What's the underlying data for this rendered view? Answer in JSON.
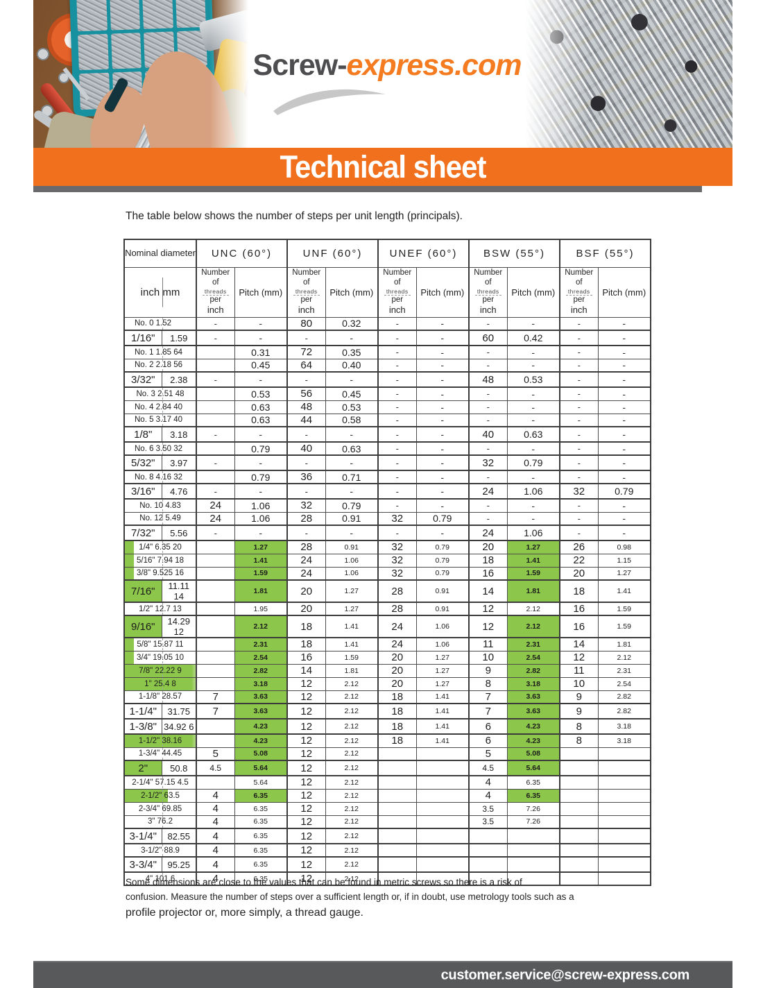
{
  "colors": {
    "accent_orange": "#f1701e",
    "highlight_green": "#8cc64a",
    "bottom_bar_gray": "#58595b",
    "logo_gray": "#4d4d4f",
    "logo_orange": "#f47b20"
  },
  "header": {
    "logo_prefix": "Screw-",
    "logo_suffix": "express.com",
    "banner_title": "Technical sheet"
  },
  "intro": "The table below shows the number of steps per unit length (principals).",
  "table": {
    "nominal_header": "Nominal diameter",
    "unit_header": "inch mm",
    "groups": [
      {
        "label": "UNC (60°)"
      },
      {
        "label": "UNF (60°)"
      },
      {
        "label": "UNEF (60°)"
      },
      {
        "label": "BSW (55°)"
      },
      {
        "label": "BSF (55°)"
      }
    ],
    "subheaders": {
      "threads_lines": [
        "Number of",
        "threads",
        "per",
        "inch"
      ],
      "pitch": "Pitch (mm)"
    },
    "rows": [
      {
        "n": "No. 0 1.52",
        "t": "m",
        "a": "l",
        "c": [
          "-",
          "-",
          "80",
          "0.32",
          "-",
          "-",
          "-",
          "-",
          "-",
          "-"
        ]
      },
      {
        "n": "1/16\"",
        "mm": "1.59",
        "t": "s",
        "c": [
          "-",
          "-",
          "-",
          "-",
          "-",
          "-",
          "60",
          "0.42",
          "-",
          "-"
        ]
      },
      {
        "n": "No. 1 1.85 64",
        "t": "m",
        "a": "l",
        "c": [
          "",
          "0.31",
          "72",
          "0.35",
          "-",
          "-",
          "-",
          "-",
          "-",
          "-"
        ]
      },
      {
        "n": "No. 2 2.18 56",
        "t": "m",
        "a": "l",
        "c": [
          "",
          "0.45",
          "64",
          "0.40",
          "-",
          "-",
          "-",
          "-",
          "-",
          "-"
        ]
      },
      {
        "n": "3/32\"",
        "mm": "2.38",
        "t": "s",
        "c": [
          "-",
          "-",
          "-",
          "-",
          "-",
          "-",
          "48",
          "0.53",
          "-",
          "-"
        ]
      },
      {
        "n": "No. 3 2.51 48",
        "t": "m",
        "c": [
          "",
          "0.53",
          "56",
          "0.45",
          "-",
          "-",
          "-",
          "-",
          "-",
          "-"
        ]
      },
      {
        "n": "No. 4 2.84 40",
        "t": "m",
        "a": "l",
        "c": [
          "",
          "0.63",
          "48",
          "0.53",
          "-",
          "-",
          "-",
          "-",
          "-",
          "-"
        ]
      },
      {
        "n": "No. 5 3.17 40",
        "t": "m",
        "a": "l",
        "c": [
          "",
          "0.63",
          "44",
          "0.58",
          "-",
          "-",
          "-",
          "-",
          "-",
          "-"
        ]
      },
      {
        "n": "1/8\"",
        "mm": "3.18",
        "t": "s",
        "c": [
          "-",
          "-",
          "-",
          "-",
          "-",
          "-",
          "40",
          "0.63",
          "-",
          "-"
        ]
      },
      {
        "n": "No. 6 3.50 32",
        "t": "m",
        "a": "l",
        "c": [
          "",
          "0.79",
          "40",
          "0.63",
          "-",
          "-",
          "-",
          "-",
          "-",
          "-"
        ]
      },
      {
        "n": "5/32\"",
        "mm": "3.97",
        "t": "s",
        "c": [
          "-",
          "-",
          "-",
          "-",
          "-",
          "-",
          "32",
          "0.79",
          "-",
          "-"
        ]
      },
      {
        "n": "No. 8 4.16 32",
        "t": "m",
        "a": "l",
        "c": [
          "",
          "0.79",
          "36",
          "0.71",
          "-",
          "-",
          "-",
          "-",
          "-",
          "-"
        ]
      },
      {
        "n": "3/16\"",
        "mm": "4.76",
        "t": "s",
        "c": [
          "-",
          "-",
          "-",
          "-",
          "-",
          "-",
          "24",
          "1.06",
          "32",
          "0.79"
        ]
      },
      {
        "n": "No. 10 4.83",
        "t": "m",
        "c": [
          "24",
          "1.06",
          "32",
          "0.79",
          "-",
          "-",
          "-",
          "-",
          "-",
          "-"
        ]
      },
      {
        "n": "No. 12 5.49",
        "t": "m",
        "c": [
          "24",
          "1.06",
          "28",
          "0.91",
          "32",
          "0.79",
          "-",
          "-",
          "-",
          "-"
        ]
      },
      {
        "n": "7/32\"",
        "mm": "5.56",
        "t": "s",
        "c": [
          "-",
          "-",
          "-",
          "-",
          "-",
          "-",
          "24",
          "1.06",
          "-",
          "-"
        ]
      },
      {
        "n": "1/4\" 6.35 20",
        "t": "m",
        "ng": 1,
        "g": [
          1,
          7
        ],
        "c": [
          "",
          "1.27",
          "28",
          "0.91",
          "32",
          "0.79",
          "20",
          "1.27",
          "26",
          "0.98"
        ]
      },
      {
        "n": "5/16\" 7.94 18",
        "t": "m",
        "ng": 1,
        "g": [
          1,
          7
        ],
        "c": [
          "",
          "1.41",
          "24",
          "1.06",
          "32",
          "0.79",
          "18",
          "1.41",
          "22",
          "1.15"
        ]
      },
      {
        "n": "3/8\" 9.525 16",
        "t": "m",
        "ng": 1,
        "g": [
          1,
          7
        ],
        "c": [
          "",
          "1.59",
          "24",
          "1.06",
          "32",
          "0.79",
          "16",
          "1.59",
          "20",
          "1.27"
        ]
      },
      {
        "n": "7/16\"",
        "mm": "11.11 14",
        "t": "s",
        "ng": 2,
        "g": [
          1,
          7
        ],
        "c": [
          "",
          "1.81",
          "20",
          "1.27",
          "28",
          "0.91",
          "14",
          "1.81",
          "18",
          "1.41"
        ]
      },
      {
        "n": "1/2\" 12.7 13",
        "t": "m",
        "c": [
          "",
          "1.95",
          "20",
          "1.27",
          "28",
          "0.91",
          "12",
          "2.12",
          "16",
          "1.59"
        ]
      },
      {
        "n": "9/16\"",
        "mm": "14.29 12",
        "t": "s",
        "ng": 2,
        "g": [
          1,
          7
        ],
        "c": [
          "",
          "2.12",
          "18",
          "1.41",
          "24",
          "1.06",
          "12",
          "2.12",
          "16",
          "1.59"
        ]
      },
      {
        "n": "5/8\" 15.87 11",
        "t": "m",
        "ng": 1,
        "g": [
          1,
          7
        ],
        "c": [
          "",
          "2.31",
          "18",
          "1.41",
          "24",
          "1.06",
          "11",
          "2.31",
          "14",
          "1.81"
        ]
      },
      {
        "n": "3/4\" 19.05 10",
        "t": "m",
        "ng": 1,
        "g": [
          1,
          7
        ],
        "c": [
          "",
          "2.54",
          "16",
          "1.59",
          "20",
          "1.27",
          "10",
          "2.54",
          "12",
          "2.12"
        ]
      },
      {
        "n": "7/8\" 22.22 9",
        "t": "m",
        "ng": 3,
        "g": [
          1,
          7
        ],
        "c": [
          "",
          "2.82",
          "14",
          "1.81",
          "20",
          "1.27",
          "9",
          "2.82",
          "11",
          "2.31"
        ]
      },
      {
        "n": "1\" 25.4 8",
        "t": "m",
        "ng": 3,
        "g": [
          1,
          7
        ],
        "c": [
          "",
          "3.18",
          "12",
          "2.12",
          "20",
          "1.27",
          "8",
          "3.18",
          "10",
          "2.54"
        ]
      },
      {
        "n": "1-1/8\" 28.57",
        "t": "m",
        "g": [
          1,
          7
        ],
        "c": [
          "7",
          "3.63",
          "12",
          "2.12",
          "18",
          "1.41",
          "7",
          "3.63",
          "9",
          "2.82"
        ]
      },
      {
        "n": "1-1/4\"",
        "mm": "31.75",
        "t": "s",
        "g": [
          1,
          7
        ],
        "c": [
          "7",
          "3.63",
          "12",
          "2.12",
          "18",
          "1.41",
          "7",
          "3.63",
          "9",
          "2.82"
        ]
      },
      {
        "n": "1-3/8\"",
        "mm": "34.92 6",
        "t": "s",
        "g": [
          1,
          7
        ],
        "c": [
          "",
          "4.23",
          "12",
          "2.12",
          "18",
          "1.41",
          "6",
          "4.23",
          "8",
          "3.18"
        ]
      },
      {
        "n": "1-1/2\" 38.16",
        "t": "m",
        "ng": 3,
        "g": [
          1,
          7
        ],
        "c": [
          "",
          "4.23",
          "12",
          "2.12",
          "18",
          "1.41",
          "6",
          "4.23",
          "8",
          "3.18"
        ]
      },
      {
        "n": "1-3/4\" 44.45",
        "t": "m",
        "g": [
          1,
          7
        ],
        "c": [
          "5",
          "5.08",
          "12",
          "2.12",
          "",
          "",
          "5",
          "5.08",
          "",
          ""
        ]
      },
      {
        "n": "2\"",
        "mm": "50.8",
        "t": "s",
        "ng": 2,
        "g": [
          1,
          7
        ],
        "c": [
          "4.5",
          "5.64",
          "12",
          "2.12",
          "",
          "",
          "4.5",
          "5.64",
          "",
          ""
        ]
      },
      {
        "n": "2-1/4\" 57.15 4.5",
        "t": "m",
        "c": [
          "",
          "5.64",
          "12",
          "2.12",
          "",
          "",
          "4",
          "6.35",
          "",
          ""
        ]
      },
      {
        "n": "2-1/2\" 63.5",
        "t": "m",
        "ng": 2,
        "g": [
          1,
          7
        ],
        "c": [
          "4",
          "6.35",
          "12",
          "2.12",
          "",
          "",
          "4",
          "6.35",
          "",
          ""
        ]
      },
      {
        "n": "2-3/4\" 69.85",
        "t": "m",
        "c": [
          "4",
          "6.35",
          "12",
          "2.12",
          "",
          "",
          "3.5",
          "7.26",
          "",
          ""
        ]
      },
      {
        "n": "3\" 76.2",
        "t": "m",
        "c": [
          "4",
          "6.35",
          "12",
          "2.12",
          "",
          "",
          "3.5",
          "7.26",
          "",
          ""
        ]
      },
      {
        "n": "3-1/4\"",
        "mm": "82.55",
        "t": "s",
        "c": [
          "4",
          "6.35",
          "12",
          "2.12",
          "",
          "",
          "",
          "",
          "",
          ""
        ]
      },
      {
        "n": "3-1/2\" 88.9",
        "t": "m",
        "c": [
          "4",
          "6.35",
          "12",
          "2.12",
          "",
          "",
          "",
          "",
          "",
          ""
        ]
      },
      {
        "n": "3-3/4\"",
        "mm": "95.25",
        "t": "s",
        "c": [
          "4",
          "6.35",
          "12",
          "2.12",
          "",
          "",
          "",
          "",
          "",
          ""
        ]
      },
      {
        "n": "4\" 101.6",
        "t": "m",
        "c": [
          "4",
          "6.35",
          "12",
          "2.12",
          "",
          "",
          "",
          "",
          "",
          ""
        ]
      }
    ]
  },
  "footer": {
    "note_lines": [
      "Some dimensions are close to the values that can be found in metric screws so there is a risk of",
      "confusion. Measure the number of steps over a sufficient length or, if in doubt, use metrology tools such as a",
      "profile projector or, more simply, a thread gauge."
    ],
    "email": "customer.service@screw-express.com"
  }
}
